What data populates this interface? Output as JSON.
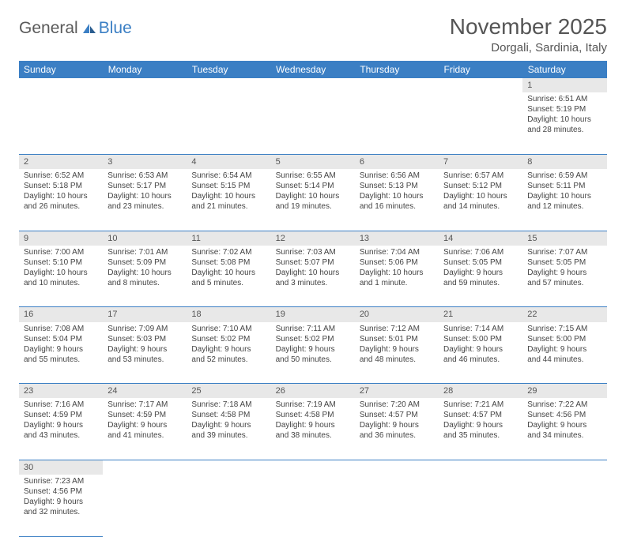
{
  "logo": {
    "part1": "General",
    "part2": "Blue"
  },
  "title": "November 2025",
  "location": "Dorgali, Sardinia, Italy",
  "day_headers": [
    "Sunday",
    "Monday",
    "Tuesday",
    "Wednesday",
    "Thursday",
    "Friday",
    "Saturday"
  ],
  "colors": {
    "header_bg": "#3b7fc4",
    "header_text": "#ffffff",
    "daynum_bg": "#e8e8e8",
    "border": "#3b7fc4",
    "text": "#444444",
    "logo_gray": "#5a5a5a",
    "logo_blue": "#3b7fc4"
  },
  "weeks": [
    [
      null,
      null,
      null,
      null,
      null,
      null,
      {
        "n": "1",
        "sr": "6:51 AM",
        "ss": "5:19 PM",
        "dl": "10 hours and 28 minutes."
      }
    ],
    [
      {
        "n": "2",
        "sr": "6:52 AM",
        "ss": "5:18 PM",
        "dl": "10 hours and 26 minutes."
      },
      {
        "n": "3",
        "sr": "6:53 AM",
        "ss": "5:17 PM",
        "dl": "10 hours and 23 minutes."
      },
      {
        "n": "4",
        "sr": "6:54 AM",
        "ss": "5:15 PM",
        "dl": "10 hours and 21 minutes."
      },
      {
        "n": "5",
        "sr": "6:55 AM",
        "ss": "5:14 PM",
        "dl": "10 hours and 19 minutes."
      },
      {
        "n": "6",
        "sr": "6:56 AM",
        "ss": "5:13 PM",
        "dl": "10 hours and 16 minutes."
      },
      {
        "n": "7",
        "sr": "6:57 AM",
        "ss": "5:12 PM",
        "dl": "10 hours and 14 minutes."
      },
      {
        "n": "8",
        "sr": "6:59 AM",
        "ss": "5:11 PM",
        "dl": "10 hours and 12 minutes."
      }
    ],
    [
      {
        "n": "9",
        "sr": "7:00 AM",
        "ss": "5:10 PM",
        "dl": "10 hours and 10 minutes."
      },
      {
        "n": "10",
        "sr": "7:01 AM",
        "ss": "5:09 PM",
        "dl": "10 hours and 8 minutes."
      },
      {
        "n": "11",
        "sr": "7:02 AM",
        "ss": "5:08 PM",
        "dl": "10 hours and 5 minutes."
      },
      {
        "n": "12",
        "sr": "7:03 AM",
        "ss": "5:07 PM",
        "dl": "10 hours and 3 minutes."
      },
      {
        "n": "13",
        "sr": "7:04 AM",
        "ss": "5:06 PM",
        "dl": "10 hours and 1 minute."
      },
      {
        "n": "14",
        "sr": "7:06 AM",
        "ss": "5:05 PM",
        "dl": "9 hours and 59 minutes."
      },
      {
        "n": "15",
        "sr": "7:07 AM",
        "ss": "5:05 PM",
        "dl": "9 hours and 57 minutes."
      }
    ],
    [
      {
        "n": "16",
        "sr": "7:08 AM",
        "ss": "5:04 PM",
        "dl": "9 hours and 55 minutes."
      },
      {
        "n": "17",
        "sr": "7:09 AM",
        "ss": "5:03 PM",
        "dl": "9 hours and 53 minutes."
      },
      {
        "n": "18",
        "sr": "7:10 AM",
        "ss": "5:02 PM",
        "dl": "9 hours and 52 minutes."
      },
      {
        "n": "19",
        "sr": "7:11 AM",
        "ss": "5:02 PM",
        "dl": "9 hours and 50 minutes."
      },
      {
        "n": "20",
        "sr": "7:12 AM",
        "ss": "5:01 PM",
        "dl": "9 hours and 48 minutes."
      },
      {
        "n": "21",
        "sr": "7:14 AM",
        "ss": "5:00 PM",
        "dl": "9 hours and 46 minutes."
      },
      {
        "n": "22",
        "sr": "7:15 AM",
        "ss": "5:00 PM",
        "dl": "9 hours and 44 minutes."
      }
    ],
    [
      {
        "n": "23",
        "sr": "7:16 AM",
        "ss": "4:59 PM",
        "dl": "9 hours and 43 minutes."
      },
      {
        "n": "24",
        "sr": "7:17 AM",
        "ss": "4:59 PM",
        "dl": "9 hours and 41 minutes."
      },
      {
        "n": "25",
        "sr": "7:18 AM",
        "ss": "4:58 PM",
        "dl": "9 hours and 39 minutes."
      },
      {
        "n": "26",
        "sr": "7:19 AM",
        "ss": "4:58 PM",
        "dl": "9 hours and 38 minutes."
      },
      {
        "n": "27",
        "sr": "7:20 AM",
        "ss": "4:57 PM",
        "dl": "9 hours and 36 minutes."
      },
      {
        "n": "28",
        "sr": "7:21 AM",
        "ss": "4:57 PM",
        "dl": "9 hours and 35 minutes."
      },
      {
        "n": "29",
        "sr": "7:22 AM",
        "ss": "4:56 PM",
        "dl": "9 hours and 34 minutes."
      }
    ],
    [
      {
        "n": "30",
        "sr": "7:23 AM",
        "ss": "4:56 PM",
        "dl": "9 hours and 32 minutes."
      },
      null,
      null,
      null,
      null,
      null,
      null
    ]
  ],
  "labels": {
    "sunrise": "Sunrise:",
    "sunset": "Sunset:",
    "daylight": "Daylight:"
  }
}
